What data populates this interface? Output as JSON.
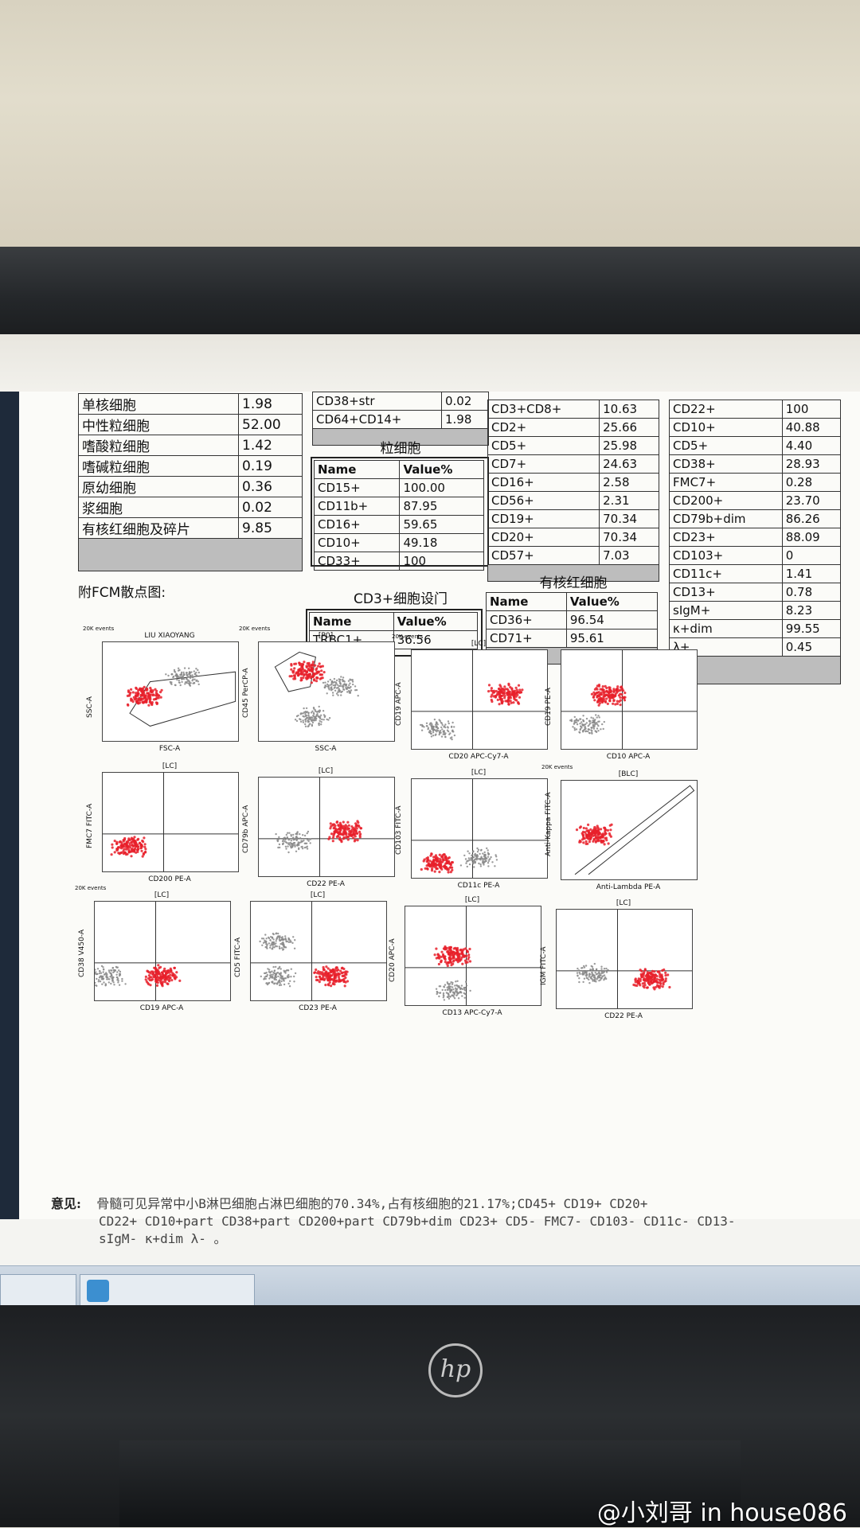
{
  "table1": {
    "rows": [
      {
        "name": "单核细胞",
        "value": "1.98"
      },
      {
        "name": "中性粒细胞",
        "value": "52.00"
      },
      {
        "name": "嗜酸粒细胞",
        "value": "1.42"
      },
      {
        "name": "嗜碱粒细胞",
        "value": "0.19"
      },
      {
        "name": "原幼细胞",
        "value": "0.36"
      },
      {
        "name": "浆细胞",
        "value": "0.02"
      },
      {
        "name": "有核红细胞及碎片",
        "value": "9.85"
      }
    ]
  },
  "table2": {
    "rows": [
      {
        "name": "CD38+str",
        "value": "0.02"
      },
      {
        "name": "CD64+CD14+",
        "value": "1.98"
      }
    ]
  },
  "granulocyte": {
    "title": "粒细胞",
    "header": {
      "name": "Name",
      "value": "Value%"
    },
    "rows": [
      {
        "name": "CD15+",
        "value": "100.00"
      },
      {
        "name": "CD11b+",
        "value": "87.95"
      },
      {
        "name": "CD16+",
        "value": "59.65"
      },
      {
        "name": "CD10+",
        "value": "49.18"
      },
      {
        "name": "CD33+",
        "value": "100"
      }
    ]
  },
  "cd3gate": {
    "title": "CD3+细胞设门",
    "header": {
      "name": "Name",
      "value": "Value%"
    },
    "rows": [
      {
        "name": "TRBC1+",
        "value": "36.56"
      }
    ]
  },
  "table3": {
    "rows": [
      {
        "name": "CD3+CD8+",
        "value": "10.63"
      },
      {
        "name": "CD2+",
        "value": "25.66"
      },
      {
        "name": "CD5+",
        "value": "25.98"
      },
      {
        "name": "CD7+",
        "value": "24.63"
      },
      {
        "name": "CD16+",
        "value": "2.58"
      },
      {
        "name": "CD56+",
        "value": "2.31"
      },
      {
        "name": "CD19+",
        "value": "70.34"
      },
      {
        "name": "CD20+",
        "value": "70.34"
      },
      {
        "name": "CD57+",
        "value": "7.03"
      }
    ]
  },
  "erythroid": {
    "title": "有核红细胞",
    "header": {
      "name": "Name",
      "value": "Value%"
    },
    "rows": [
      {
        "name": "CD36+",
        "value": "96.54"
      },
      {
        "name": "CD71+",
        "value": "95.61"
      }
    ]
  },
  "table4": {
    "rows": [
      {
        "name": "CD22+",
        "value": "100"
      },
      {
        "name": "CD10+",
        "value": "40.88"
      },
      {
        "name": "CD5+",
        "value": "4.40"
      },
      {
        "name": "CD38+",
        "value": "28.93"
      },
      {
        "name": "FMC7+",
        "value": "0.28"
      },
      {
        "name": "CD200+",
        "value": "23.70"
      },
      {
        "name": "CD79b+dim",
        "value": "86.26"
      },
      {
        "name": "CD23+",
        "value": "88.09"
      },
      {
        "name": "CD103+",
        "value": "0"
      },
      {
        "name": "CD11c+",
        "value": "1.41"
      },
      {
        "name": "CD13+",
        "value": "0.78"
      },
      {
        "name": "sIgM+",
        "value": "8.23"
      },
      {
        "name": "κ+dim",
        "value": "99.55"
      },
      {
        "name": "λ+",
        "value": "0.45"
      }
    ]
  },
  "fcm_label": "附FCM散点图:",
  "plots": [
    {
      "title": "LIU XIAOYANG",
      "gate": "[P0]",
      "x": "FSC-A",
      "y": "SSC-A",
      "ev": "20K events"
    },
    {
      "title": "[P0]",
      "gate": "LC",
      "x": "SSC-A",
      "y": "CD45 PerCP-A",
      "ev": "20K events"
    },
    {
      "title": "[LC]",
      "x": "CD20 APC-Cy7-A",
      "y": "CD19 APC-A",
      "ev": "20K events"
    },
    {
      "title": "",
      "x": "CD10 APC-A",
      "y": "CD19 PE-A",
      "ev": ""
    },
    {
      "title": "[LC]",
      "x": "CD200 PE-A",
      "y": "FMC7 FITC-A",
      "ev": ""
    },
    {
      "title": "[LC]",
      "x": "CD22 PE-A",
      "y": "CD79b APC-A",
      "ev": ""
    },
    {
      "title": "[LC]",
      "x": "CD11c PE-A",
      "y": "CD103 FITC-A",
      "ev": ""
    },
    {
      "title": "[BLC]",
      "x": "Anti-Lambda PE-A",
      "y": "Anti-Kappa FITC-A",
      "ev": "20K events"
    },
    {
      "title": "[LC]",
      "x": "CD19 APC-A",
      "y": "CD38 V450-A",
      "ev": "20K events"
    },
    {
      "title": "[LC]",
      "x": "CD23 PE-A",
      "y": "CD5 FITC-A",
      "ev": ""
    },
    {
      "title": "[LC]",
      "x": "CD13 APC-Cy7-A",
      "y": "CD20 APC-A",
      "ev": ""
    },
    {
      "title": "[LC]",
      "x": "CD22 PE-A",
      "y": "IGM FITC-A",
      "ev": ""
    }
  ],
  "opinion": {
    "label": "意见:",
    "line1": "骨髓可见异常中小B淋巴细胞占淋巴细胞的70.34%,占有核细胞的21.17%;CD45+ CD19+ CD20+",
    "line2": "CD22+ CD10+part CD38+part CD200+part CD79b+dim CD23+ CD5- FMC7- CD103- CD11c- CD13-",
    "line3": "sIgM- κ+dim λ- 。"
  },
  "brand": "hp",
  "watermark": "@小刘哥 in house086"
}
